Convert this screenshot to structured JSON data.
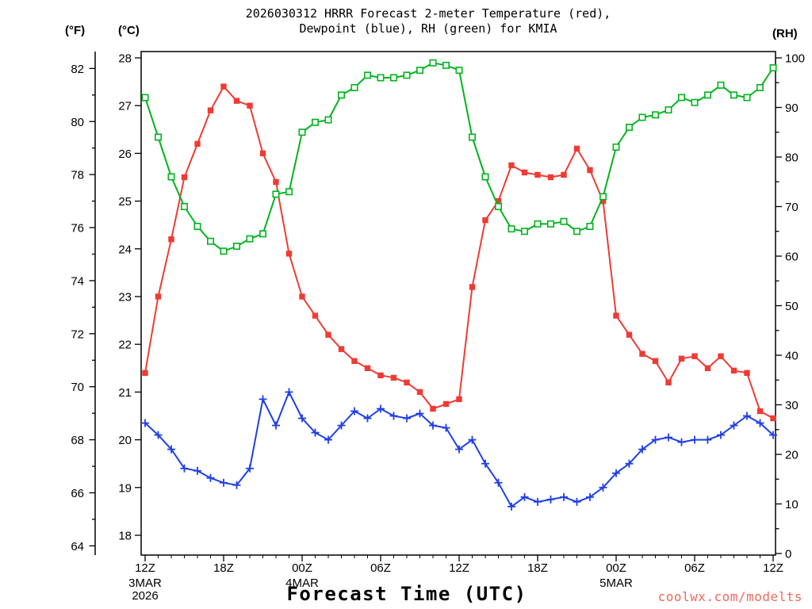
{
  "title": {
    "line1": "2026030312 HRRR Forecast 2-meter Temperature (red),",
    "line2": "Dewpoint (blue), RH (green) for KMIA"
  },
  "axes": {
    "left_outer_unit": "(°F)",
    "left_inner_unit": "(°C)",
    "right_unit": "(RH)",
    "x_title": "Forecast Time (UTC)"
  },
  "watermark": "coolwx.com/modelts",
  "watermark_color": "#ee6a5e",
  "chart_data": {
    "type": "line",
    "title": "2026030312 HRRR Forecast 2-meter Temperature (red), Dewpoint (blue), RH (green) for KMIA",
    "xlabel": "Forecast Time (UTC)",
    "x_hours_range": [
      0,
      48
    ],
    "c_axis_range": [
      18,
      28
    ],
    "rh_axis_range": [
      0,
      100
    ],
    "grid": false,
    "c_ticks": [
      18,
      19,
      20,
      21,
      22,
      23,
      24,
      25,
      26,
      27,
      28
    ],
    "f_ticks": [
      64,
      66,
      68,
      70,
      72,
      74,
      76,
      78,
      80,
      82
    ],
    "rh_ticks": [
      0,
      10,
      20,
      30,
      40,
      50,
      60,
      70,
      80,
      90,
      100
    ],
    "x_ticks": [
      {
        "hour": 0,
        "label": "12Z"
      },
      {
        "hour": 6,
        "label": "18Z"
      },
      {
        "hour": 12,
        "label": "00Z"
      },
      {
        "hour": 18,
        "label": "06Z"
      },
      {
        "hour": 24,
        "label": "12Z"
      },
      {
        "hour": 30,
        "label": "18Z"
      },
      {
        "hour": 36,
        "label": "00Z"
      },
      {
        "hour": 42,
        "label": "06Z"
      },
      {
        "hour": 48,
        "label": "12Z"
      }
    ],
    "x_date_labels": [
      {
        "hour": 0,
        "lines": [
          "3MAR",
          "2026"
        ]
      },
      {
        "hour": 12,
        "lines": [
          "4MAR"
        ]
      },
      {
        "hour": 36,
        "lines": [
          "5MAR"
        ]
      }
    ],
    "series": [
      {
        "id": "temperature",
        "name": "2-meter Temperature",
        "unit": "°C",
        "axis": "temperature_c",
        "color": "#ef3b33",
        "marker": "filled-square",
        "values": [
          21.4,
          23.0,
          24.2,
          25.5,
          26.2,
          26.9,
          27.4,
          27.1,
          27.0,
          26.0,
          25.4,
          23.9,
          23.0,
          22.6,
          22.2,
          21.9,
          21.65,
          21.5,
          21.35,
          21.3,
          21.2,
          21.0,
          20.65,
          20.75,
          20.85,
          23.2,
          24.6,
          25.0,
          25.75,
          25.6,
          25.55,
          25.5,
          25.55,
          26.1,
          25.65,
          25.0,
          22.6,
          22.2,
          21.8,
          21.65,
          21.2,
          21.7,
          21.75,
          21.5,
          21.75,
          21.45,
          21.4,
          20.6,
          20.45
        ]
      },
      {
        "id": "dewpoint",
        "name": "Dewpoint",
        "unit": "°C",
        "axis": "temperature_c",
        "color": "#1f3fe8",
        "marker": "plus",
        "values": [
          20.35,
          20.1,
          19.8,
          19.4,
          19.35,
          19.2,
          19.1,
          19.05,
          19.4,
          20.85,
          20.3,
          21.0,
          20.45,
          20.15,
          20.0,
          20.3,
          20.6,
          20.45,
          20.65,
          20.5,
          20.45,
          20.55,
          20.3,
          20.25,
          19.8,
          20.0,
          19.5,
          19.1,
          18.6,
          18.8,
          18.7,
          18.75,
          18.8,
          18.7,
          18.8,
          19.0,
          19.3,
          19.5,
          19.8,
          20.0,
          20.05,
          19.95,
          20.0,
          20.0,
          20.1,
          20.3,
          20.5,
          20.35,
          20.1
        ]
      },
      {
        "id": "rh",
        "name": "RH",
        "unit": "%",
        "axis": "rh",
        "color": "#00b41e",
        "marker": "open-square",
        "values": [
          92,
          84,
          76,
          70,
          66,
          63,
          61,
          62,
          63.5,
          64.5,
          72.5,
          73,
          85,
          87,
          87.5,
          92.5,
          94,
          96.5,
          96,
          96,
          96.5,
          97.5,
          99,
          98.5,
          97.5,
          84,
          76,
          70,
          65.5,
          65,
          66.5,
          66.5,
          67,
          65,
          66,
          72,
          82,
          86,
          88,
          88.5,
          89.5,
          92,
          91,
          92.5,
          94.5,
          92.5,
          92,
          94,
          98
        ]
      }
    ]
  }
}
